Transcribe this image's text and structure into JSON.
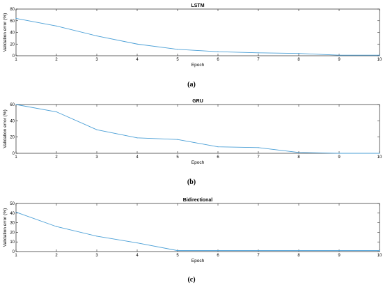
{
  "chart_data": [
    {
      "type": "line",
      "title": "LSTM",
      "xlabel": "Epoch",
      "ylabel": "Validation error (%)",
      "caption": "(a)",
      "x": [
        1,
        2,
        3,
        4,
        5,
        6,
        7,
        8,
        9,
        10
      ],
      "xlim": [
        1,
        10
      ],
      "ylim": [
        0,
        80
      ],
      "xticks": [
        1,
        2,
        3,
        4,
        5,
        6,
        7,
        8,
        9,
        10
      ],
      "yticks": [
        0,
        20,
        40,
        60,
        80
      ],
      "grid": false,
      "series": [
        {
          "values": [
            64,
            51,
            34,
            20,
            11,
            7,
            5,
            4,
            1,
            1
          ],
          "color": "#4a9fd6"
        }
      ]
    },
    {
      "type": "line",
      "title": "GRU",
      "xlabel": "Epoch",
      "ylabel": "Validation error (%)",
      "caption": "(b)",
      "x": [
        1,
        2,
        3,
        4,
        5,
        6,
        7,
        8,
        9,
        10
      ],
      "xlim": [
        1,
        10
      ],
      "ylim": [
        0,
        60
      ],
      "xticks": [
        1,
        2,
        3,
        4,
        5,
        6,
        7,
        8,
        9,
        10
      ],
      "yticks": [
        0,
        20,
        40,
        60
      ],
      "grid": false,
      "series": [
        {
          "values": [
            60,
            51,
            29,
            19,
            17,
            8,
            7,
            1,
            0,
            0
          ],
          "color": "#4a9fd6"
        }
      ]
    },
    {
      "type": "line",
      "title": "Bidirectional",
      "xlabel": "Epoch",
      "ylabel": "Validation error (%)",
      "caption": "(c)",
      "x": [
        1,
        2,
        3,
        4,
        5,
        6,
        7,
        8,
        9,
        10
      ],
      "xlim": [
        1,
        10
      ],
      "ylim": [
        0,
        50
      ],
      "xticks": [
        1,
        2,
        3,
        4,
        5,
        6,
        7,
        8,
        9,
        10
      ],
      "yticks": [
        0,
        10,
        20,
        30,
        40,
        50
      ],
      "grid": false,
      "series": [
        {
          "values": [
            41,
            26,
            16,
            9,
            1,
            1,
            1,
            1,
            1,
            1
          ],
          "color": "#4a9fd6"
        }
      ]
    }
  ]
}
